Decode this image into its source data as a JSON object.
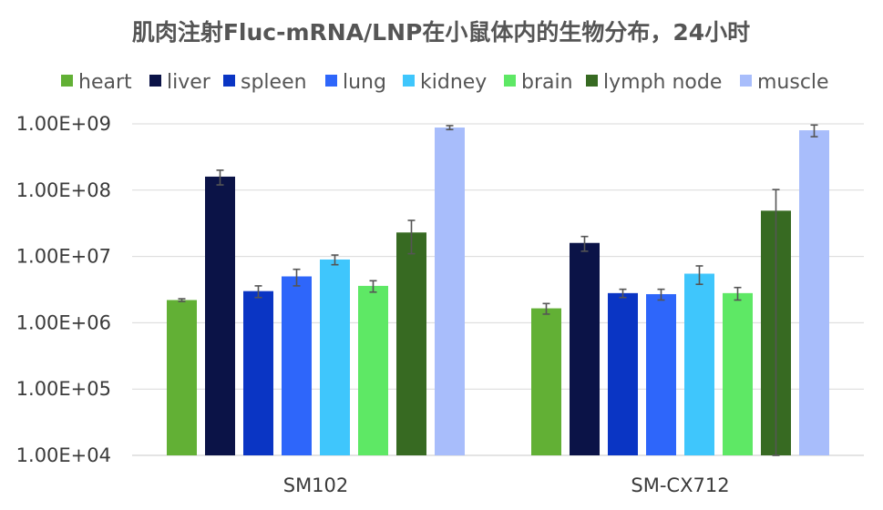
{
  "chart_data": {
    "type": "bar",
    "title": "肌肉注射Fluc-mRNA/LNP在小鼠体内的生物分布，24小时",
    "xlabel": "",
    "ylabel": "",
    "y_scale": "log",
    "ylim": [
      10000,
      1000000000
    ],
    "yticks": [
      10000,
      100000,
      1000000,
      10000000,
      100000000,
      1000000000
    ],
    "ytick_labels": [
      "1.00E+04",
      "1.00E+05",
      "1.00E+06",
      "1.00E+07",
      "1.00E+08",
      "1.00E+09"
    ],
    "grid": true,
    "legend_position": "top",
    "categories": [
      "SM102",
      "SM-CX712"
    ],
    "series": [
      {
        "name": "heart",
        "color": "#62B035",
        "values": [
          2200000,
          1650000
        ],
        "errors": [
          100000,
          300000
        ]
      },
      {
        "name": "liver",
        "color": "#0B1347",
        "values": [
          160000000,
          16000000
        ],
        "errors": [
          40000000,
          4000000
        ]
      },
      {
        "name": "spleen",
        "color": "#0A35C4",
        "values": [
          3000000,
          2800000
        ],
        "errors": [
          600000,
          400000
        ]
      },
      {
        "name": "lung",
        "color": "#2E66FA",
        "values": [
          5000000,
          2700000
        ],
        "errors": [
          1400000,
          500000
        ]
      },
      {
        "name": "kidney",
        "color": "#3FC6FC",
        "values": [
          9000000,
          5500000
        ],
        "errors": [
          1500000,
          1700000
        ]
      },
      {
        "name": "brain",
        "color": "#5EE865",
        "values": [
          3600000,
          2800000
        ],
        "errors": [
          700000,
          600000
        ]
      },
      {
        "name": "lymph node",
        "color": "#376A22",
        "values": [
          23000000,
          49000000
        ],
        "errors": [
          12000000,
          53000000
        ]
      },
      {
        "name": "muscle",
        "color": "#A8BDFB",
        "values": [
          880000000,
          800000000
        ],
        "errors": [
          60000000,
          160000000
        ]
      }
    ]
  }
}
